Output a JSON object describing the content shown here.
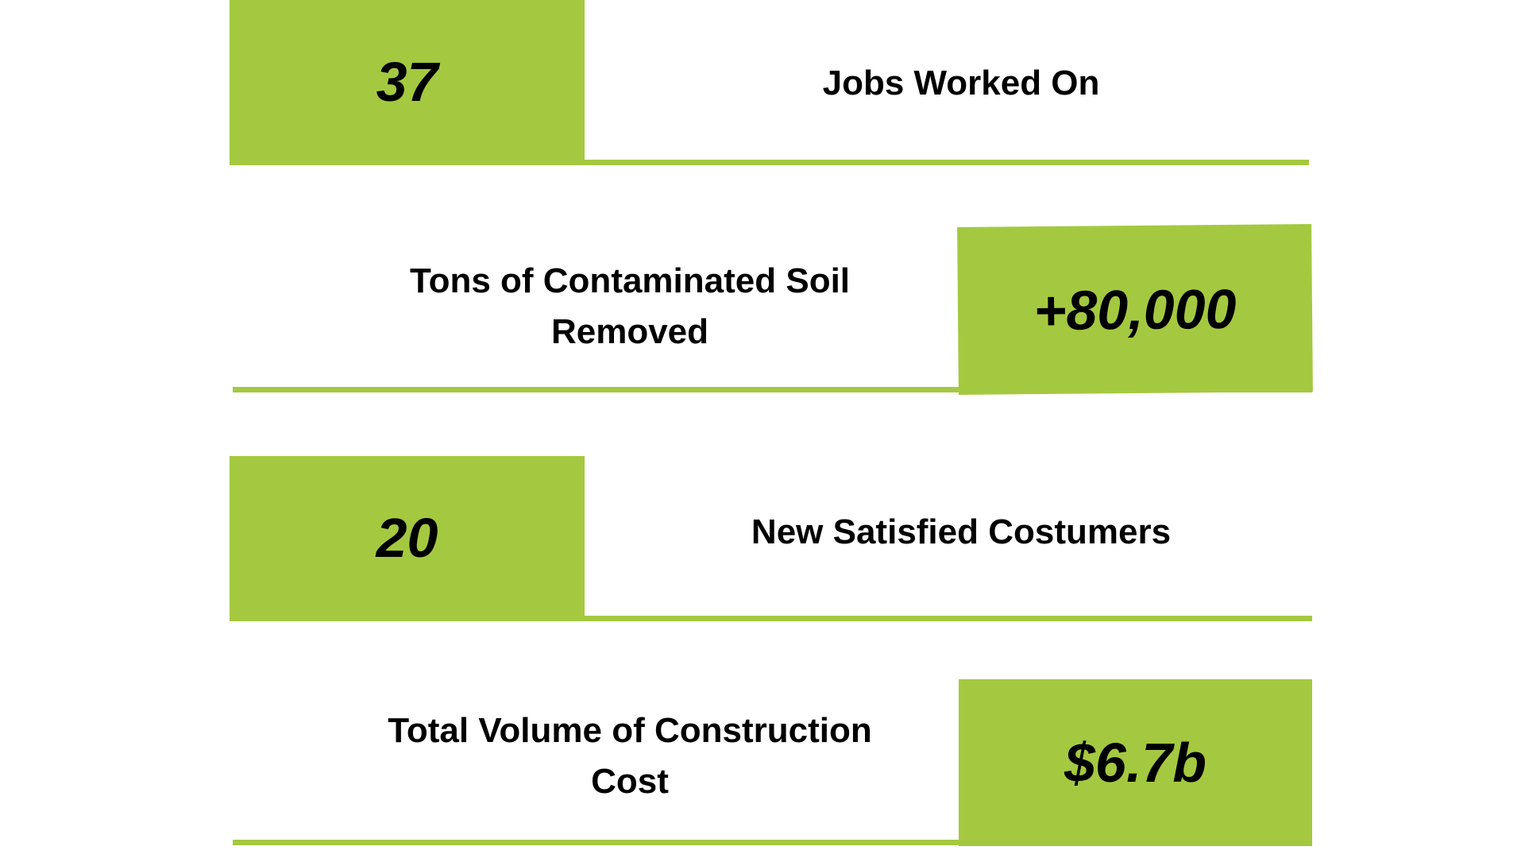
{
  "accent_color": "#a4c940",
  "stats": [
    {
      "value": "37",
      "label": "Jobs Worked On"
    },
    {
      "value": "+80,000",
      "label_line1": "Tons of Contaminated Soil",
      "label_line2": "Removed"
    },
    {
      "value": "20",
      "label": "New Satisfied Costumers"
    },
    {
      "value": "$6.7b",
      "label_line1": "Total Volume of Construction",
      "label_line2": "Cost"
    }
  ]
}
